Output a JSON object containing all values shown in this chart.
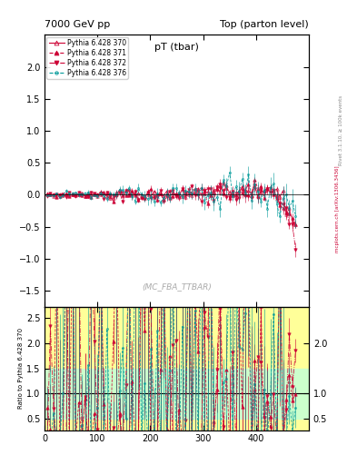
{
  "title_left": "7000 GeV pp",
  "title_right": "Top (parton level)",
  "plot_title": "pT (tbar)",
  "watermark": "(MC_FBA_TTBAR)",
  "right_label1": "Rivet 3.1.10, ≥ 100k events",
  "right_label2": "mcplots.cern.ch [arXiv:1306.3436]",
  "ylabel_ratio": "Ratio to Pythia 6.428 370",
  "ylim_main": [
    -1.75,
    2.5
  ],
  "ylim_ratio": [
    0.28,
    2.72
  ],
  "xlim": [
    0,
    500
  ],
  "yticks_main": [
    -1.5,
    -1.0,
    -0.5,
    0.0,
    0.5,
    1.0,
    1.5,
    2.0
  ],
  "yticks_ratio": [
    0.5,
    1.0,
    1.5,
    2.0,
    2.5
  ],
  "xticks": [
    0,
    100,
    200,
    300,
    400
  ],
  "series": [
    {
      "label": "Pythia 6.428 370",
      "color": "#cc0033",
      "linestyle": "-",
      "marker": "^",
      "filled": false,
      "markersize": 2.5
    },
    {
      "label": "Pythia 6.428 371",
      "color": "#cc0033",
      "linestyle": "--",
      "marker": "^",
      "filled": true,
      "markersize": 2.5
    },
    {
      "label": "Pythia 6.428 372",
      "color": "#cc0033",
      "linestyle": "-.",
      "marker": "v",
      "filled": true,
      "markersize": 2.5
    },
    {
      "label": "Pythia 6.428 376",
      "color": "#009999",
      "linestyle": "--",
      "marker": "o",
      "filled": false,
      "markersize": 1.5
    }
  ],
  "ratio_band_yellow": [
    0.5,
    1.5
  ],
  "ratio_band_green": [
    0.75,
    1.25
  ],
  "n_points": 80,
  "xmax_data": 475,
  "xmin_data": 5
}
